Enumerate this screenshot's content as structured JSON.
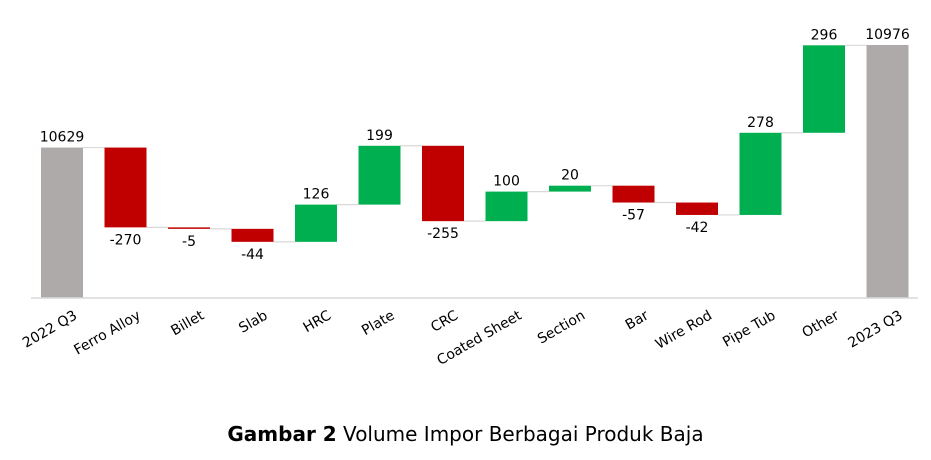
{
  "chart_data": {
    "type": "waterfall",
    "categories": [
      "2022 Q3",
      "Ferro Alloy",
      "Billet",
      "Slab",
      "HRC",
      "Plate",
      "CRC",
      "Coated Sheet",
      "Section",
      "Bar",
      "Wire Rod",
      "Pipe Tub",
      "Other",
      "2023 Q3"
    ],
    "values": [
      10629,
      -270,
      -5,
      -44,
      126,
      199,
      -255,
      100,
      20,
      -57,
      -42,
      278,
      296,
      10976
    ],
    "kinds": [
      "total",
      "delta",
      "delta",
      "delta",
      "delta",
      "delta",
      "delta",
      "delta",
      "delta",
      "delta",
      "delta",
      "delta",
      "delta",
      "total"
    ],
    "labels": [
      "10629",
      "-270",
      "-5",
      "-44",
      "126",
      "199",
      "-255",
      "100",
      "20",
      "-57",
      "-42",
      "278",
      "296",
      "10976"
    ],
    "ylim": [
      10120,
      10976
    ],
    "grid": false,
    "legend": "none",
    "colors": {
      "total": "#aeaaa9",
      "increase": "#00b050",
      "decrease": "#c00000",
      "connector": "#d9d9d9",
      "axis": "#d9d9d9"
    }
  },
  "caption": {
    "bold": "Gambar 2",
    "text": " Volume Impor Berbagai Produk Baja"
  }
}
